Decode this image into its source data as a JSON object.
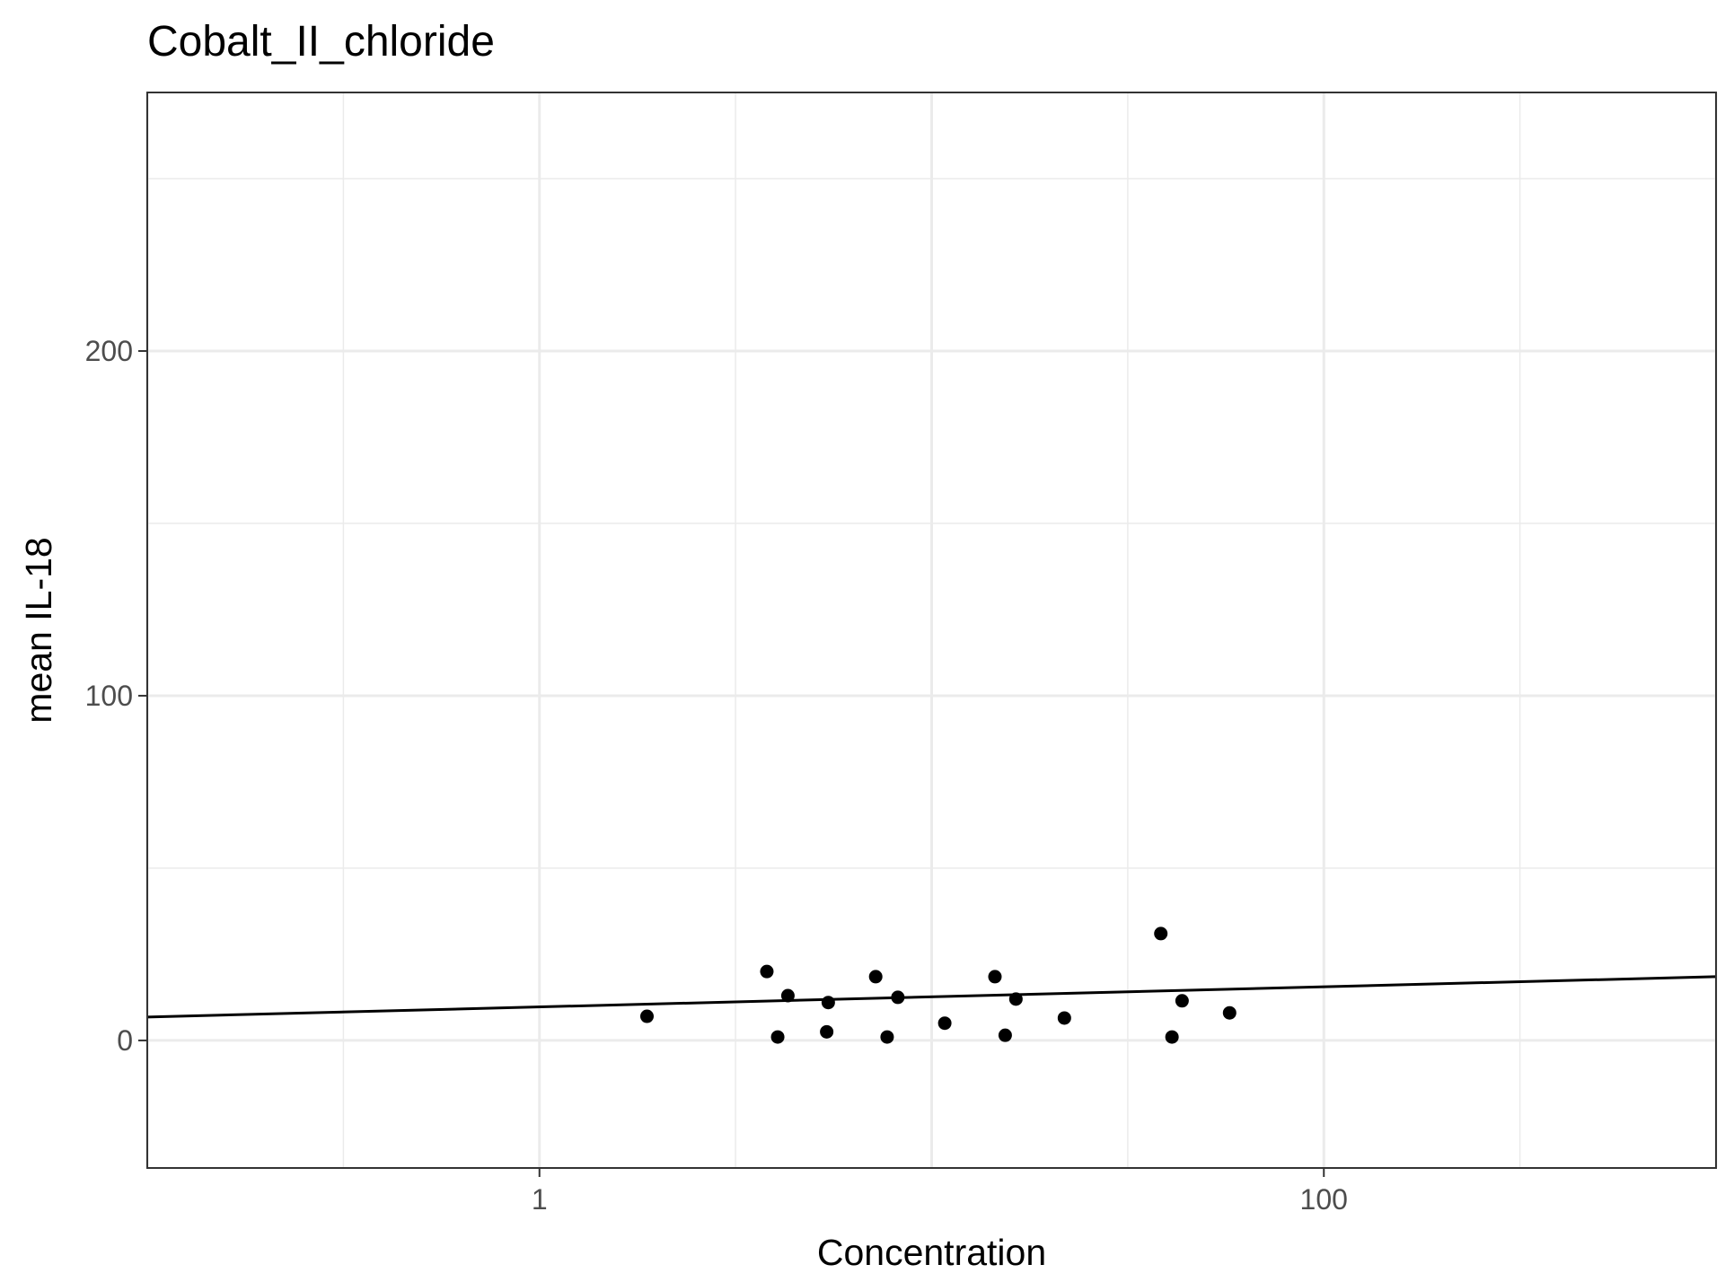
{
  "chart_data": {
    "type": "scatter",
    "title": "Cobalt_II_chloride",
    "xlabel": "Concentration",
    "ylabel": "mean IL-18",
    "x_scale": "log10",
    "xlim": [
      0.1,
      1000
    ],
    "ylim": [
      -37,
      275
    ],
    "x_ticks": [
      {
        "value": 1,
        "label": "1"
      },
      {
        "value": 100,
        "label": "100"
      }
    ],
    "y_ticks": [
      {
        "value": 0,
        "label": "0"
      },
      {
        "value": 100,
        "label": "100"
      },
      {
        "value": 200,
        "label": "200"
      }
    ],
    "grid": true,
    "colors": {
      "points": "#000000",
      "line": "#000000",
      "grid": "#ebebeb",
      "panel_border": "#333333",
      "background": "#ffffff"
    },
    "points": [
      {
        "x": 1.88,
        "y": 7
      },
      {
        "x": 3.8,
        "y": 20
      },
      {
        "x": 4.05,
        "y": 1
      },
      {
        "x": 4.3,
        "y": 13
      },
      {
        "x": 5.4,
        "y": 2.5
      },
      {
        "x": 5.45,
        "y": 11
      },
      {
        "x": 7.2,
        "y": 18.5
      },
      {
        "x": 7.7,
        "y": 1
      },
      {
        "x": 8.2,
        "y": 12.5
      },
      {
        "x": 10.8,
        "y": 5
      },
      {
        "x": 14.5,
        "y": 18.5
      },
      {
        "x": 15.4,
        "y": 1.5
      },
      {
        "x": 16.4,
        "y": 12
      },
      {
        "x": 21.8,
        "y": 6.5
      },
      {
        "x": 38.4,
        "y": 31
      },
      {
        "x": 41,
        "y": 1
      },
      {
        "x": 43.5,
        "y": 11.5
      },
      {
        "x": 57.5,
        "y": 8
      }
    ],
    "fit_line": {
      "x": [
        0.1,
        1000
      ],
      "y": [
        6.8,
        18.5
      ]
    }
  }
}
